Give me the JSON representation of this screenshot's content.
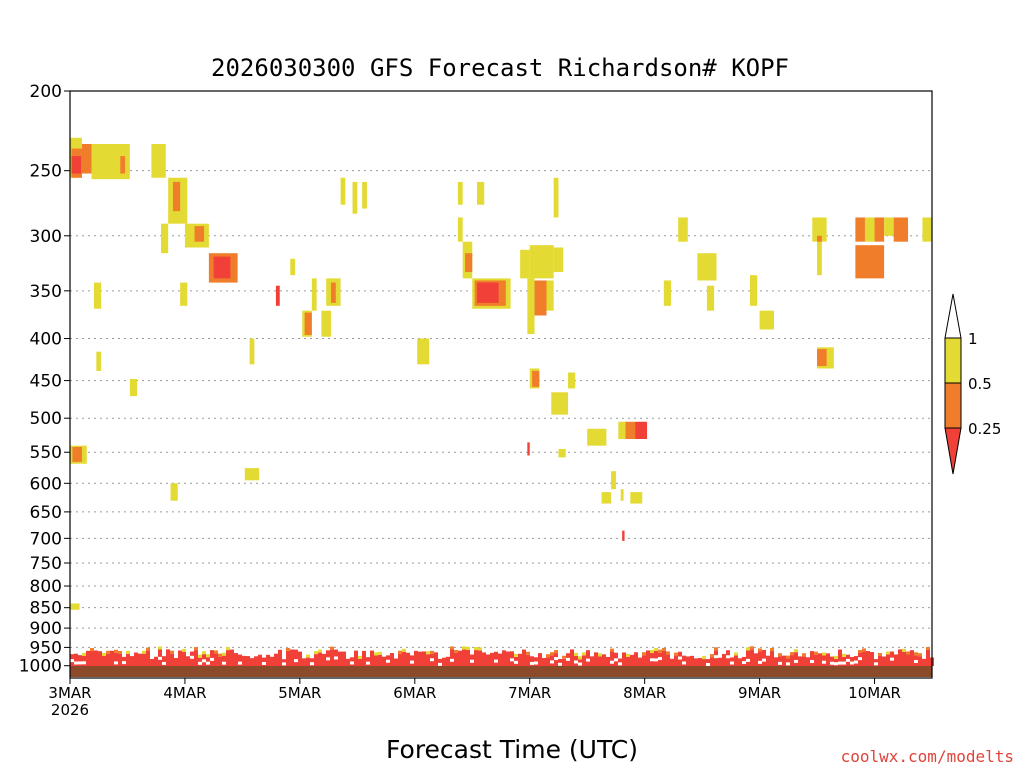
{
  "chart_data": {
    "type": "heatmap",
    "title": "2026030300 GFS Forecast Richardson# KOPF",
    "xlabel": "Forecast Time (UTC)",
    "ylabel": "",
    "credit": "coolwx.com/modelts",
    "x_ticks": [
      {
        "t": 0,
        "label": "3MAR",
        "sub": "2026"
      },
      {
        "t": 24,
        "label": "4MAR"
      },
      {
        "t": 48,
        "label": "5MAR"
      },
      {
        "t": 72,
        "label": "6MAR"
      },
      {
        "t": 96,
        "label": "7MAR"
      },
      {
        "t": 120,
        "label": "8MAR"
      },
      {
        "t": 144,
        "label": "9MAR"
      },
      {
        "t": 168,
        "label": "10MAR"
      }
    ],
    "x_range_hours": [
      0,
      180
    ],
    "y_range_hpa": [
      1035,
      200
    ],
    "y_ticks": [
      200,
      250,
      300,
      350,
      400,
      450,
      500,
      550,
      600,
      650,
      700,
      750,
      800,
      850,
      900,
      950,
      1000
    ],
    "legend": [
      {
        "label": "1",
        "level": 1
      },
      {
        "label": "0.5",
        "level": 0.5
      },
      {
        "label": "0.25",
        "level": 0.25
      }
    ],
    "colors": {
      "lt_0_25": "#f04038",
      "0_25_to_0_5": "#ef7d2a",
      "0_5_to_1": "#e3da34",
      "ground": "#8b4a2a"
    },
    "cells": [
      {
        "t0": 0,
        "t1": 2.5,
        "p0": 228,
        "p1": 255,
        "cat": "0.5-1"
      },
      {
        "t0": 0.3,
        "t1": 2.5,
        "p0": 235,
        "p1": 255,
        "cat": "0.25-0.5"
      },
      {
        "t0": 0.3,
        "t1": 2.3,
        "p0": 240,
        "p1": 252,
        "cat": "<0.25"
      },
      {
        "t0": 2.5,
        "t1": 4.5,
        "p0": 232,
        "p1": 252,
        "cat": "0.25-0.5"
      },
      {
        "t0": 4.5,
        "t1": 12.5,
        "p0": 232,
        "p1": 256,
        "cat": "0.5-1"
      },
      {
        "t0": 10.5,
        "t1": 11.5,
        "p0": 240,
        "p1": 252,
        "cat": "0.25-0.5"
      },
      {
        "t0": 17,
        "t1": 20,
        "p0": 232,
        "p1": 255,
        "cat": "0.5-1"
      },
      {
        "t0": 20.5,
        "t1": 24.5,
        "p0": 255,
        "p1": 290,
        "cat": "0.5-1"
      },
      {
        "t0": 21.5,
        "t1": 23,
        "p0": 258,
        "p1": 280,
        "cat": "0.25-0.5"
      },
      {
        "t0": 19,
        "t1": 20.5,
        "p0": 290,
        "p1": 315,
        "cat": "0.5-1"
      },
      {
        "t0": 24,
        "t1": 29,
        "p0": 290,
        "p1": 310,
        "cat": "0.5-1"
      },
      {
        "t0": 26,
        "t1": 28,
        "p0": 292,
        "p1": 305,
        "cat": "0.25-0.5"
      },
      {
        "t0": 29,
        "t1": 35,
        "p0": 315,
        "p1": 342,
        "cat": "0.25-0.5"
      },
      {
        "t0": 30,
        "t1": 33.5,
        "p0": 318,
        "p1": 338,
        "cat": "<0.25"
      },
      {
        "t0": 23,
        "t1": 24.5,
        "p0": 342,
        "p1": 365,
        "cat": "0.5-1"
      },
      {
        "t0": 5,
        "t1": 6.5,
        "p0": 342,
        "p1": 368,
        "cat": "0.5-1"
      },
      {
        "t0": 5.5,
        "t1": 6.5,
        "p0": 415,
        "p1": 438,
        "cat": "0.5-1"
      },
      {
        "t0": 12.5,
        "t1": 14,
        "p0": 448,
        "p1": 470,
        "cat": "0.5-1"
      },
      {
        "t0": 0,
        "t1": 3.5,
        "p0": 540,
        "p1": 568,
        "cat": "0.5-1"
      },
      {
        "t0": 0.5,
        "t1": 2.5,
        "p0": 542,
        "p1": 565,
        "cat": "0.25-0.5"
      },
      {
        "t0": 0,
        "t1": 2,
        "p0": 840,
        "p1": 855,
        "cat": "0.5-1"
      },
      {
        "t0": 21,
        "t1": 22.5,
        "p0": 600,
        "p1": 630,
        "cat": "0.5-1"
      },
      {
        "t0": 36.5,
        "t1": 39.5,
        "p0": 575,
        "p1": 595,
        "cat": "0.5-1"
      },
      {
        "t0": 37.5,
        "t1": 38.5,
        "p0": 400,
        "p1": 430,
        "cat": "0.5-1"
      },
      {
        "t0": 43,
        "t1": 43.8,
        "p0": 345,
        "p1": 365,
        "cat": "<0.25"
      },
      {
        "t0": 46,
        "t1": 47,
        "p0": 320,
        "p1": 335,
        "cat": "0.5-1"
      },
      {
        "t0": 48.5,
        "t1": 50.5,
        "p0": 370,
        "p1": 398,
        "cat": "0.5-1"
      },
      {
        "t0": 49,
        "t1": 50.5,
        "p0": 372,
        "p1": 396,
        "cat": "0.25-0.5"
      },
      {
        "t0": 50.5,
        "t1": 51.5,
        "p0": 338,
        "p1": 370,
        "cat": "0.5-1"
      },
      {
        "t0": 52.5,
        "t1": 54.5,
        "p0": 370,
        "p1": 398,
        "cat": "0.5-1"
      },
      {
        "t0": 53.5,
        "t1": 56.5,
        "p0": 338,
        "p1": 365,
        "cat": "0.5-1"
      },
      {
        "t0": 54.5,
        "t1": 55.5,
        "p0": 342,
        "p1": 362,
        "cat": "0.25-0.5"
      },
      {
        "t0": 56.5,
        "t1": 57.5,
        "p0": 255,
        "p1": 275,
        "cat": "0.5-1"
      },
      {
        "t0": 59,
        "t1": 60,
        "p0": 258,
        "p1": 282,
        "cat": "0.5-1"
      },
      {
        "t0": 61,
        "t1": 62,
        "p0": 258,
        "p1": 278,
        "cat": "0.5-1"
      },
      {
        "t0": 72.5,
        "t1": 75,
        "p0": 400,
        "p1": 430,
        "cat": "0.5-1"
      },
      {
        "t0": 81,
        "t1": 82,
        "p0": 258,
        "p1": 275,
        "cat": "0.5-1"
      },
      {
        "t0": 81,
        "t1": 82,
        "p0": 285,
        "p1": 305,
        "cat": "0.5-1"
      },
      {
        "t0": 82,
        "t1": 84,
        "p0": 305,
        "p1": 338,
        "cat": "0.5-1"
      },
      {
        "t0": 82.5,
        "t1": 84,
        "p0": 315,
        "p1": 332,
        "cat": "0.25-0.5"
      },
      {
        "t0": 84,
        "t1": 92,
        "p0": 338,
        "p1": 368,
        "cat": "0.5-1"
      },
      {
        "t0": 84.5,
        "t1": 91,
        "p0": 340,
        "p1": 365,
        "cat": "0.25-0.5"
      },
      {
        "t0": 85,
        "t1": 89.5,
        "p0": 342,
        "p1": 362,
        "cat": "<0.25"
      },
      {
        "t0": 85,
        "t1": 86.5,
        "p0": 258,
        "p1": 275,
        "cat": "0.5-1"
      },
      {
        "t0": 94,
        "t1": 96,
        "p0": 312,
        "p1": 338,
        "cat": "0.5-1"
      },
      {
        "t0": 95.5,
        "t1": 97,
        "p0": 338,
        "p1": 395,
        "cat": "0.5-1"
      },
      {
        "t0": 96,
        "t1": 101,
        "p0": 308,
        "p1": 338,
        "cat": "0.5-1"
      },
      {
        "t0": 97,
        "t1": 99.5,
        "p0": 340,
        "p1": 375,
        "cat": "0.25-0.5"
      },
      {
        "t0": 99.5,
        "t1": 101,
        "p0": 340,
        "p1": 370,
        "cat": "0.5-1"
      },
      {
        "t0": 101,
        "t1": 103,
        "p0": 310,
        "p1": 332,
        "cat": "0.5-1"
      },
      {
        "t0": 101,
        "t1": 102,
        "p0": 255,
        "p1": 285,
        "cat": "0.5-1"
      },
      {
        "t0": 96,
        "t1": 98,
        "p0": 435,
        "p1": 460,
        "cat": "0.5-1"
      },
      {
        "t0": 96.5,
        "t1": 98,
        "p0": 438,
        "p1": 458,
        "cat": "0.25-0.5"
      },
      {
        "t0": 100.5,
        "t1": 104,
        "p0": 465,
        "p1": 495,
        "cat": "0.5-1"
      },
      {
        "t0": 104,
        "t1": 105.5,
        "p0": 440,
        "p1": 460,
        "cat": "0.5-1"
      },
      {
        "t0": 95.5,
        "t1": 96,
        "p0": 535,
        "p1": 555,
        "cat": "<0.25"
      },
      {
        "t0": 102,
        "t1": 103.5,
        "p0": 545,
        "p1": 558,
        "cat": "0.5-1"
      },
      {
        "t0": 108,
        "t1": 112,
        "p0": 515,
        "p1": 540,
        "cat": "0.5-1"
      },
      {
        "t0": 114.5,
        "t1": 116.5,
        "p0": 505,
        "p1": 530,
        "cat": "0.5-1"
      },
      {
        "t0": 116,
        "t1": 118,
        "p0": 505,
        "p1": 530,
        "cat": "0.25-0.5"
      },
      {
        "t0": 118,
        "t1": 120.5,
        "p0": 505,
        "p1": 530,
        "cat": "<0.25"
      },
      {
        "t0": 111,
        "t1": 113,
        "p0": 615,
        "p1": 635,
        "cat": "0.5-1"
      },
      {
        "t0": 113,
        "t1": 114,
        "p0": 580,
        "p1": 610,
        "cat": "0.5-1"
      },
      {
        "t0": 115,
        "t1": 115.6,
        "p0": 610,
        "p1": 630,
        "cat": "0.5-1"
      },
      {
        "t0": 117,
        "t1": 119.5,
        "p0": 615,
        "p1": 635,
        "cat": "0.5-1"
      },
      {
        "t0": 115.3,
        "t1": 115.8,
        "p0": 685,
        "p1": 705,
        "cat": "<0.25"
      },
      {
        "t0": 124,
        "t1": 125.5,
        "p0": 340,
        "p1": 365,
        "cat": "0.5-1"
      },
      {
        "t0": 127,
        "t1": 129,
        "p0": 285,
        "p1": 305,
        "cat": "0.5-1"
      },
      {
        "t0": 131,
        "t1": 135,
        "p0": 315,
        "p1": 340,
        "cat": "0.5-1"
      },
      {
        "t0": 133,
        "t1": 134.5,
        "p0": 345,
        "p1": 370,
        "cat": "0.5-1"
      },
      {
        "t0": 142,
        "t1": 143.5,
        "p0": 335,
        "p1": 365,
        "cat": "0.5-1"
      },
      {
        "t0": 144,
        "t1": 147,
        "p0": 370,
        "p1": 390,
        "cat": "0.5-1"
      },
      {
        "t0": 155,
        "t1": 158,
        "p0": 285,
        "p1": 305,
        "cat": "0.5-1"
      },
      {
        "t0": 156,
        "t1": 157,
        "p0": 305,
        "p1": 335,
        "cat": "0.5-1"
      },
      {
        "t0": 156,
        "t1": 157,
        "p0": 300,
        "p1": 305,
        "cat": "0.25-0.5"
      },
      {
        "t0": 156,
        "t1": 159.5,
        "p0": 410,
        "p1": 435,
        "cat": "0.5-1"
      },
      {
        "t0": 156,
        "t1": 158,
        "p0": 412,
        "p1": 432,
        "cat": "0.25-0.5"
      },
      {
        "t0": 164,
        "t1": 166,
        "p0": 285,
        "p1": 305,
        "cat": "0.25-0.5"
      },
      {
        "t0": 166,
        "t1": 168,
        "p0": 285,
        "p1": 305,
        "cat": "0.5-1"
      },
      {
        "t0": 168,
        "t1": 170,
        "p0": 285,
        "p1": 305,
        "cat": "0.25-0.5"
      },
      {
        "t0": 164,
        "t1": 170,
        "p0": 308,
        "p1": 338,
        "cat": "0.25-0.5"
      },
      {
        "t0": 170,
        "t1": 172,
        "p0": 285,
        "p1": 300,
        "cat": "0.5-1"
      },
      {
        "t0": 172,
        "t1": 175,
        "p0": 285,
        "p1": 305,
        "cat": "0.25-0.5"
      },
      {
        "t0": 178,
        "t1": 180,
        "p0": 285,
        "p1": 305,
        "cat": "0.5-1"
      }
    ],
    "boundary_layer": {
      "cat": "<0.25",
      "p_top_hpa": 955,
      "p_bottom_hpa": 1020,
      "note": "near-continuous layer of Ri < 0.25 with scattered gaps and fringing 0.25-1 values"
    }
  }
}
